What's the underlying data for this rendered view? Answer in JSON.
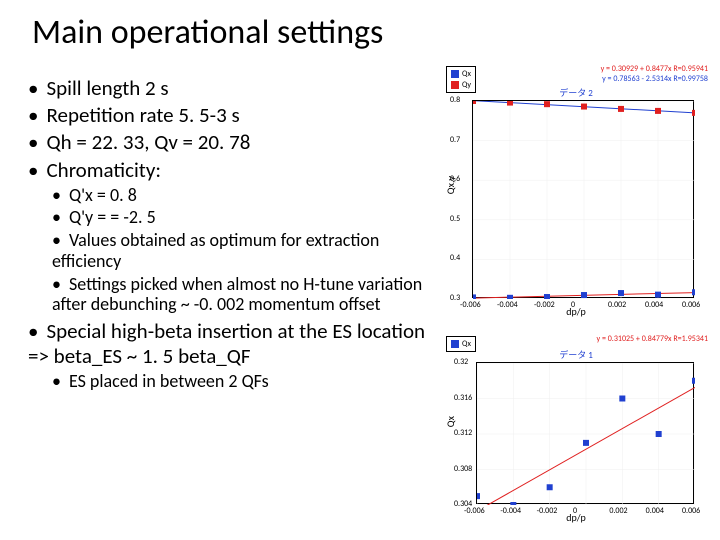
{
  "title": "Main operational settings",
  "bullets": {
    "b1": "Spill length 2 s",
    "b2": "Repetition rate 5. 5-3 s",
    "b3": "Qh = 22. 33, Qv = 20. 78",
    "b4": "Chromaticity:",
    "sub": {
      "s1": "Q'x = 0. 8",
      "s2": "Q'y = = -2. 5",
      "s3": "Values obtained as optimum for extraction efficiency",
      "s4": "Settings picked when almost no H-tune variation after debunching ~ -0. 002 momentum offset"
    },
    "b5": "Special high-beta insertion at the ES location => beta_ES ~ 1. 5 beta_QF",
    "sub2": {
      "s5": "ES placed in between 2 QFs"
    }
  },
  "chartA": {
    "type": "scatter",
    "title": "データ 2",
    "title_color": "#2040d0",
    "xlabel": "dp/p",
    "ylabel": "Qx,y",
    "xlim": [
      -0.006,
      0.006
    ],
    "ylim": [
      0.3,
      0.8
    ],
    "xticks": [
      -0.006,
      -0.004,
      -0.002,
      0,
      0.002,
      0.004,
      0.006
    ],
    "yticks": [
      0.3,
      0.4,
      0.5,
      0.6,
      0.7,
      0.8
    ],
    "grid_color": "#efefef",
    "background": "#ffffff",
    "border": "#000000",
    "series": [
      {
        "name": "Qx",
        "marker": "square",
        "color": "#2040d0",
        "line_color": "#e02020",
        "fit_label": "y = 0.30929 + 0.8477x R=0.95941",
        "fit_label_color": "#e02020",
        "x": [
          -0.006,
          -0.004,
          -0.002,
          0,
          0.002,
          0.004,
          0.006
        ],
        "y": [
          0.304,
          0.303,
          0.305,
          0.31,
          0.315,
          0.311,
          0.317
        ]
      },
      {
        "name": "Qy",
        "marker": "square",
        "color": "#e02020",
        "line_color": "#2040d0",
        "fit_label": "y = 0.78563 - 2.5314x R=0.99758",
        "fit_label_color": "#2040d0",
        "x": [
          -0.006,
          -0.004,
          -0.002,
          0,
          0.002,
          0.004,
          0.006
        ],
        "y": [
          0.8,
          0.796,
          0.792,
          0.786,
          0.78,
          0.775,
          0.77
        ]
      }
    ]
  },
  "chartB": {
    "type": "scatter",
    "title": "データ 1",
    "title_color": "#2040d0",
    "xlabel": "dp/p",
    "ylabel": "Qx",
    "xlim": [
      -0.006,
      0.006
    ],
    "ylim": [
      0.304,
      0.32
    ],
    "xticks": [
      -0.006,
      -0.004,
      -0.002,
      0,
      0.002,
      0.004,
      0.006
    ],
    "yticks": [
      0.304,
      0.308,
      0.312,
      0.316,
      0.32
    ],
    "grid_color": "#efefef",
    "background": "#ffffff",
    "border": "#000000",
    "series": [
      {
        "name": "Qx",
        "marker": "square",
        "color": "#2040d0",
        "line_color": "#e02020",
        "fit_label": "y = 0.31025 + 0.84779x R=1.95341",
        "fit_label_color": "#e02020",
        "x": [
          -0.006,
          -0.004,
          -0.002,
          0,
          0.002,
          0.004,
          0.006
        ],
        "y": [
          0.305,
          0.304,
          0.306,
          0.311,
          0.316,
          0.312,
          0.318
        ]
      }
    ]
  }
}
